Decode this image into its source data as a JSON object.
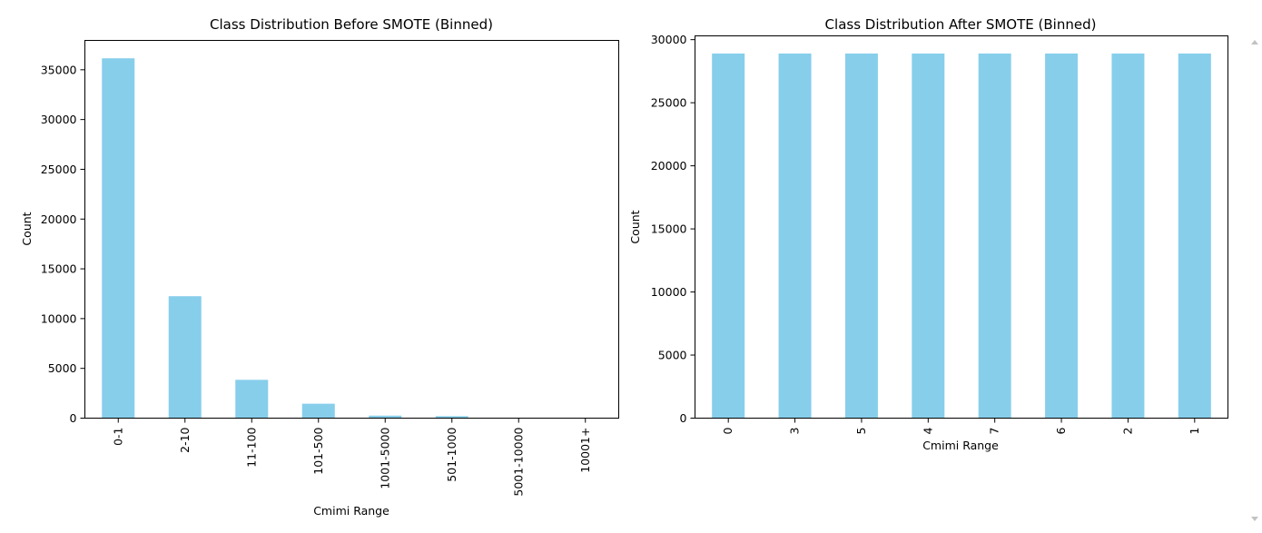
{
  "chart_data": [
    {
      "type": "bar",
      "title": "Class Distribution Before SMOTE (Binned)",
      "xlabel": "Cmimi Range",
      "ylabel": "Count",
      "categories": [
        "0-1",
        "2-10",
        "11-100",
        "101-500",
        "1001-5000",
        "501-1000",
        "5001-10000",
        "10001+"
      ],
      "values": [
        36150,
        12250,
        3850,
        1450,
        250,
        200,
        15,
        5
      ],
      "yticks": [
        0,
        5000,
        10000,
        15000,
        20000,
        25000,
        30000,
        35000
      ],
      "ylim": [
        0,
        37950
      ],
      "color": "#87ceeb",
      "grid": false,
      "legend": "none",
      "tick_rotation": 90
    },
    {
      "type": "bar",
      "title": "Class Distribution After SMOTE (Binned)",
      "xlabel": "Cmimi Range",
      "ylabel": "Count",
      "categories": [
        "0",
        "3",
        "5",
        "4",
        "7",
        "6",
        "2",
        "1"
      ],
      "values": [
        28900,
        28900,
        28900,
        28900,
        28900,
        28900,
        28900,
        28900
      ],
      "yticks": [
        0,
        5000,
        10000,
        15000,
        20000,
        25000,
        30000
      ],
      "ylim": [
        0,
        30300
      ],
      "color": "#87ceeb",
      "grid": false,
      "legend": "none",
      "tick_rotation": 90
    }
  ],
  "ui": {
    "scroll_up_icon": "triangle-up-icon",
    "scroll_down_icon": "triangle-down-icon"
  }
}
